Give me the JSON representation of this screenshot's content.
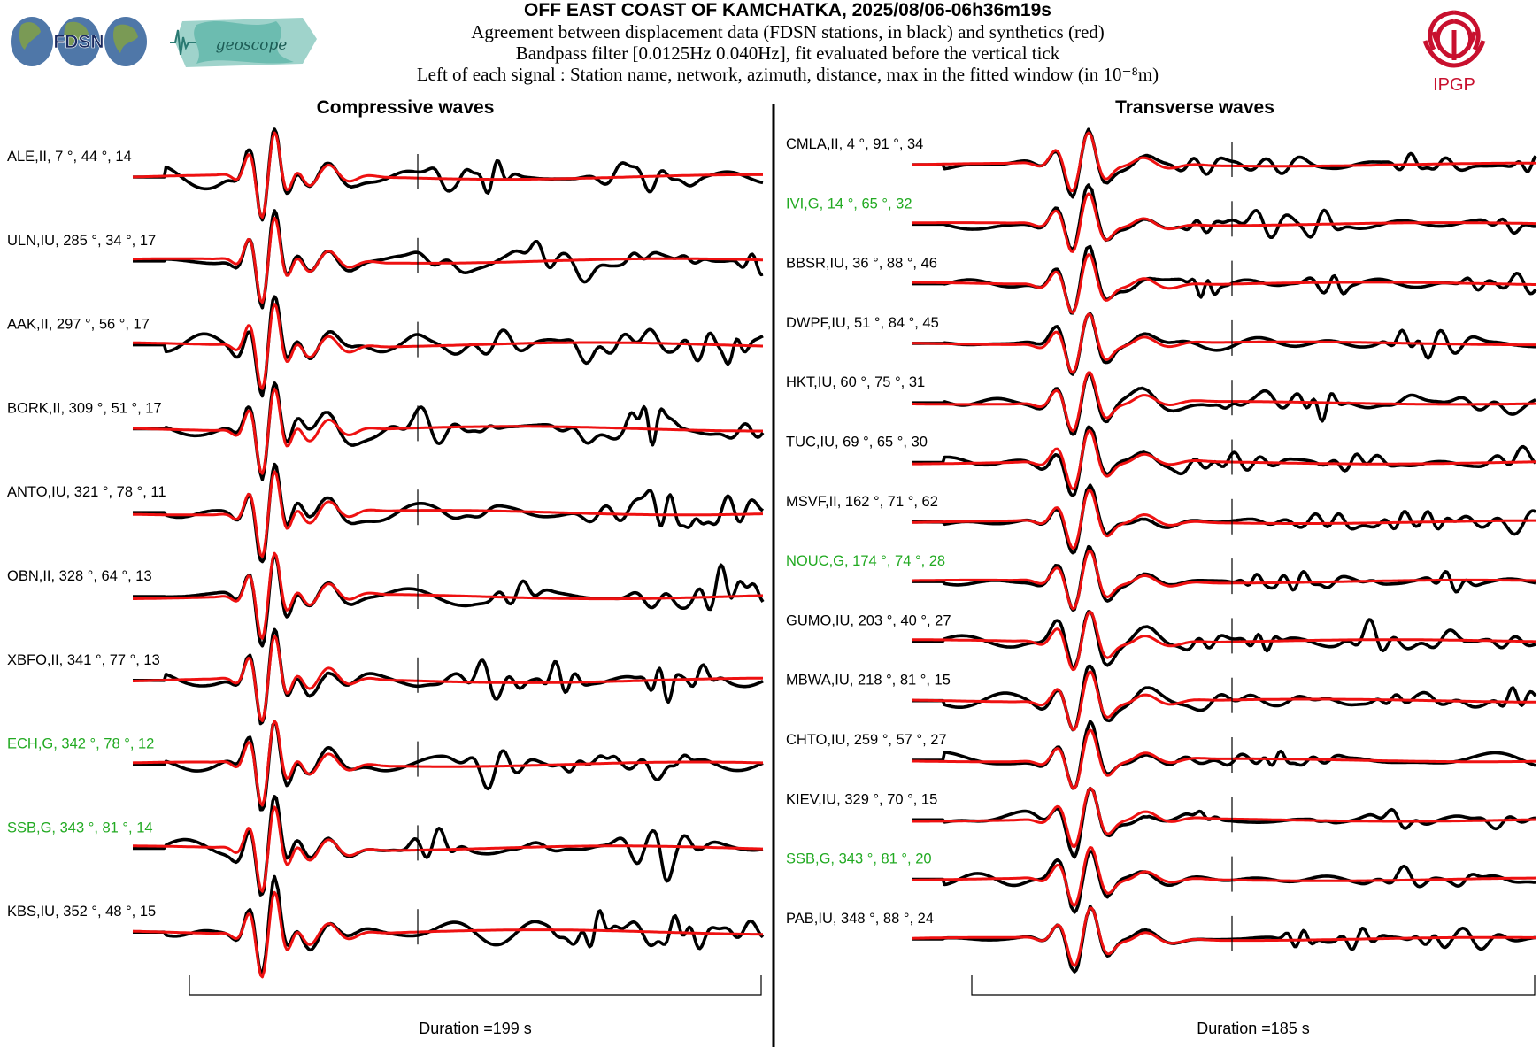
{
  "header": {
    "title": "OFF EAST COAST OF KAMCHATKA, 2025/08/06-06h36m19s",
    "line1": "Agreement between displacement data (FDSN stations, in black) and synthetics (red)",
    "line2": "Bandpass filter [0.0125Hz 0.040Hz], fit evaluated before the vertical tick",
    "line3": "Left of each signal : Station name, network, azimuth, distance, max in the fitted window (in 10⁻⁸m)"
  },
  "logos": {
    "fdsn": "FDSN",
    "geoscope": "geoscope",
    "ipgp": "IPGP"
  },
  "colors": {
    "data": "#000000",
    "synthetic": "#ee1111",
    "geoscope_station": "#22aa22",
    "ipgp": "#c8102e"
  },
  "panels": [
    {
      "title": "Compressive waves",
      "duration_label": "Duration =199 s",
      "stations": [
        {
          "label": "ALE,II, 7 °, 44 °, 14",
          "geoscope": false
        },
        {
          "label": "ULN,IU, 285 °, 34 °, 17",
          "geoscope": false
        },
        {
          "label": "AAK,II, 297 °, 56 °, 17",
          "geoscope": false
        },
        {
          "label": "BORK,II, 309 °, 51 °, 17",
          "geoscope": false
        },
        {
          "label": "ANTO,IU, 321 °, 78 °, 11",
          "geoscope": false
        },
        {
          "label": "OBN,II, 328 °, 64 °, 13",
          "geoscope": false
        },
        {
          "label": "XBFO,II, 341 °, 77 °, 13",
          "geoscope": false
        },
        {
          "label": "ECH,G, 342 °, 78 °, 12",
          "geoscope": true
        },
        {
          "label": "SSB,G, 343 °, 81 °, 14",
          "geoscope": true
        },
        {
          "label": "KBS,IU, 352 °, 48 °, 15",
          "geoscope": false
        }
      ]
    },
    {
      "title": "Transverse waves",
      "duration_label": "Duration =185 s",
      "stations": [
        {
          "label": "CMLA,II, 4 °, 91 °, 34",
          "geoscope": false
        },
        {
          "label": "IVI,G, 14 °, 65 °, 32",
          "geoscope": true
        },
        {
          "label": "BBSR,IU, 36 °, 88 °, 46",
          "geoscope": false
        },
        {
          "label": "DWPF,IU, 51 °, 84 °, 45",
          "geoscope": false
        },
        {
          "label": "HKT,IU, 60 °, 75 °, 31",
          "geoscope": false
        },
        {
          "label": "TUC,IU, 69 °, 65 °, 30",
          "geoscope": false
        },
        {
          "label": "MSVF,II, 162 °, 71 °, 62",
          "geoscope": false
        },
        {
          "label": "NOUC,G, 174 °, 74 °, 28",
          "geoscope": true
        },
        {
          "label": "GUMO,IU, 203 °, 40 °, 27",
          "geoscope": false
        },
        {
          "label": "MBWA,IU, 218 °, 81 °, 15",
          "geoscope": false
        },
        {
          "label": "CHTO,IU, 259 °, 57 °, 27",
          "geoscope": false
        },
        {
          "label": "KIEV,IU, 329 °, 70 °, 15",
          "geoscope": false
        },
        {
          "label": "SSB,G, 343 °, 81 °, 20",
          "geoscope": true
        },
        {
          "label": "PAB,IU, 348 °, 88 °, 24",
          "geoscope": false
        }
      ]
    }
  ]
}
